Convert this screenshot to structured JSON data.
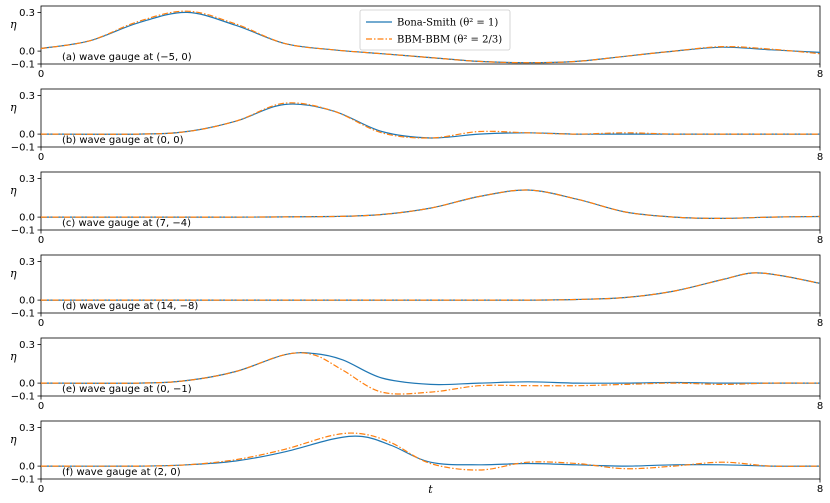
{
  "chart_data": [
    {
      "type": "line",
      "annotation": "(a) wave gauge at (−5, 0)",
      "ylabel": "η",
      "xlim": [
        0,
        8
      ],
      "ylim": [
        -0.1,
        0.35
      ],
      "yticks": [
        "0.3",
        "0.0",
        "−0.1"
      ],
      "xticks": [
        "0",
        "8"
      ],
      "legend": "top-center",
      "series": [
        {
          "name": "Bona-Smith (θ² = 1)",
          "color": "#1f77b4",
          "style": "solid",
          "x": [
            0,
            0.5,
            1,
            1.5,
            2,
            2.5,
            3,
            3.5,
            4,
            4.5,
            5,
            5.5,
            6,
            6.5,
            7,
            7.5,
            8
          ],
          "y": [
            0.02,
            0.08,
            0.22,
            0.3,
            0.2,
            0.06,
            0.01,
            -0.02,
            -0.05,
            -0.08,
            -0.09,
            -0.08,
            -0.04,
            0.0,
            0.03,
            0.01,
            -0.01
          ]
        },
        {
          "name": "BBM-BBM (θ² = 2/3)",
          "color": "#ff7f0e",
          "style": "dashdot",
          "x": [
            0,
            0.5,
            1,
            1.5,
            2,
            2.5,
            3,
            3.5,
            4,
            4.5,
            5,
            5.5,
            6,
            6.5,
            7,
            7.5,
            8
          ],
          "y": [
            0.02,
            0.08,
            0.23,
            0.31,
            0.21,
            0.06,
            0.01,
            -0.02,
            -0.05,
            -0.08,
            -0.09,
            -0.08,
            -0.04,
            0.0,
            0.035,
            0.015,
            -0.02
          ]
        }
      ]
    },
    {
      "type": "line",
      "annotation": "(b) wave gauge at (0, 0)",
      "ylabel": "η",
      "xlim": [
        0,
        8
      ],
      "ylim": [
        -0.1,
        0.35
      ],
      "yticks": [
        "0.3",
        "0.0",
        "−0.1"
      ],
      "xticks": [
        "0",
        "8"
      ],
      "series": [
        {
          "name": "Bona-Smith (θ² = 1)",
          "color": "#1f77b4",
          "style": "solid",
          "x": [
            0,
            1,
            1.5,
            2,
            2.5,
            3,
            3.5,
            4,
            4.5,
            5,
            5.5,
            6,
            6.5,
            7,
            7.5,
            8
          ],
          "y": [
            0,
            0,
            0.02,
            0.1,
            0.23,
            0.18,
            0.02,
            -0.03,
            0.0,
            0.01,
            0.0,
            0.0,
            0.0,
            0.0,
            0.0,
            0.0
          ]
        },
        {
          "name": "BBM-BBM (θ² = 2/3)",
          "color": "#ff7f0e",
          "style": "dashdot",
          "x": [
            0,
            1,
            1.5,
            2,
            2.5,
            3,
            3.5,
            4,
            4.5,
            5,
            5.5,
            6,
            6.5,
            7,
            7.5,
            8
          ],
          "y": [
            0,
            0,
            0.02,
            0.1,
            0.24,
            0.18,
            0.01,
            -0.03,
            0.02,
            0.01,
            0.0,
            0.01,
            0.0,
            0.0,
            0.0,
            0.0
          ]
        }
      ]
    },
    {
      "type": "line",
      "annotation": "(c) wave gauge at (7, −4)",
      "ylabel": "η",
      "xlim": [
        0,
        8
      ],
      "ylim": [
        -0.1,
        0.35
      ],
      "yticks": [
        "0.3",
        "0.0",
        "−0.1"
      ],
      "xticks": [
        "0",
        "8"
      ],
      "series": [
        {
          "name": "Bona-Smith (θ² = 1)",
          "color": "#1f77b4",
          "style": "solid",
          "x": [
            0,
            1,
            2,
            3,
            3.5,
            4,
            4.5,
            5,
            5.5,
            6,
            6.5,
            7,
            7.5,
            8
          ],
          "y": [
            0,
            0,
            0,
            0.005,
            0.02,
            0.07,
            0.16,
            0.21,
            0.14,
            0.04,
            0.0,
            -0.01,
            0.0,
            0.005
          ]
        },
        {
          "name": "BBM-BBM (θ² = 2/3)",
          "color": "#ff7f0e",
          "style": "dashdot",
          "x": [
            0,
            1,
            2,
            3,
            3.5,
            4,
            4.5,
            5,
            5.5,
            6,
            6.5,
            7,
            7.5,
            8
          ],
          "y": [
            0,
            0,
            0,
            0.005,
            0.02,
            0.07,
            0.16,
            0.21,
            0.14,
            0.04,
            0.0,
            -0.01,
            0.0,
            0.005
          ]
        }
      ]
    },
    {
      "type": "line",
      "annotation": "(d) wave gauge at (14, −8)",
      "ylabel": "η",
      "xlim": [
        0,
        8
      ],
      "ylim": [
        -0.1,
        0.35
      ],
      "yticks": [
        "0.3",
        "0.0",
        "−0.1"
      ],
      "xticks": [
        "0",
        "8"
      ],
      "series": [
        {
          "name": "Bona-Smith (θ² = 1)",
          "color": "#1f77b4",
          "style": "solid",
          "x": [
            0,
            1,
            2,
            3,
            4,
            5,
            5.5,
            6,
            6.5,
            7,
            7.3,
            7.6,
            8
          ],
          "y": [
            0,
            0,
            0,
            0,
            0,
            0,
            0.005,
            0.02,
            0.07,
            0.16,
            0.21,
            0.19,
            0.13
          ]
        },
        {
          "name": "BBM-BBM (θ² = 2/3)",
          "color": "#ff7f0e",
          "style": "dashdot",
          "x": [
            0,
            1,
            2,
            3,
            4,
            5,
            5.5,
            6,
            6.5,
            7,
            7.3,
            7.6,
            8
          ],
          "y": [
            0,
            0,
            0,
            0,
            0,
            0,
            0.005,
            0.02,
            0.07,
            0.16,
            0.21,
            0.19,
            0.13
          ]
        }
      ]
    },
    {
      "type": "line",
      "annotation": "(e) wave gauge at (0, −1)",
      "ylabel": "η",
      "xlim": [
        0,
        8
      ],
      "ylim": [
        -0.1,
        0.35
      ],
      "yticks": [
        "0.3",
        "0.0",
        "−0.1"
      ],
      "xticks": [
        "0",
        "8"
      ],
      "series": [
        {
          "name": "Bona-Smith (θ² = 1)",
          "color": "#1f77b4",
          "style": "solid",
          "x": [
            0,
            1,
            1.5,
            2,
            2.5,
            2.8,
            3.1,
            3.5,
            4,
            4.5,
            5,
            5.5,
            6,
            6.5,
            7,
            7.5,
            8
          ],
          "y": [
            0,
            0,
            0.02,
            0.09,
            0.22,
            0.23,
            0.18,
            0.04,
            -0.01,
            0.0,
            0.01,
            0.0,
            0.0,
            0.005,
            0.0,
            0.0,
            0.0
          ]
        },
        {
          "name": "BBM-BBM (θ² = 2/3)",
          "color": "#ff7f0e",
          "style": "dashdot",
          "x": [
            0,
            1,
            1.5,
            2,
            2.5,
            2.8,
            3.1,
            3.5,
            4,
            4.5,
            5,
            5.5,
            6,
            6.5,
            7,
            7.5,
            8
          ],
          "y": [
            0,
            0,
            0.02,
            0.09,
            0.22,
            0.22,
            0.1,
            -0.07,
            -0.07,
            -0.02,
            -0.02,
            -0.02,
            -0.01,
            0.0,
            -0.01,
            0.0,
            0.0
          ]
        }
      ]
    },
    {
      "type": "line",
      "annotation": "(f) wave gauge at (2, 0)",
      "ylabel": "η",
      "xlim": [
        0,
        8
      ],
      "ylim": [
        -0.1,
        0.35
      ],
      "yticks": [
        "0.3",
        "0.0",
        "−0.1"
      ],
      "xticks": [
        "0",
        "8"
      ],
      "xlabel": "t",
      "series": [
        {
          "name": "Bona-Smith (θ² = 1)",
          "color": "#1f77b4",
          "style": "solid",
          "x": [
            0,
            1,
            1.5,
            2,
            2.5,
            3,
            3.3,
            3.6,
            4,
            4.5,
            5,
            5.5,
            6,
            6.5,
            7,
            7.5,
            8
          ],
          "y": [
            0,
            0,
            0.01,
            0.04,
            0.11,
            0.21,
            0.23,
            0.16,
            0.03,
            0.01,
            0.02,
            0.01,
            0.0,
            0.01,
            0.01,
            0.0,
            0.0
          ]
        },
        {
          "name": "BBM-BBM (θ² = 2/3)",
          "color": "#ff7f0e",
          "style": "dashdot",
          "x": [
            0,
            1,
            1.5,
            2,
            2.5,
            3,
            3.3,
            3.6,
            4,
            4.5,
            5,
            5.5,
            6,
            6.5,
            7,
            7.5,
            8
          ],
          "y": [
            0,
            0,
            0.01,
            0.05,
            0.13,
            0.24,
            0.25,
            0.18,
            0.02,
            -0.03,
            0.03,
            0.02,
            -0.02,
            0.0,
            0.03,
            0.0,
            0.0
          ]
        }
      ]
    }
  ]
}
